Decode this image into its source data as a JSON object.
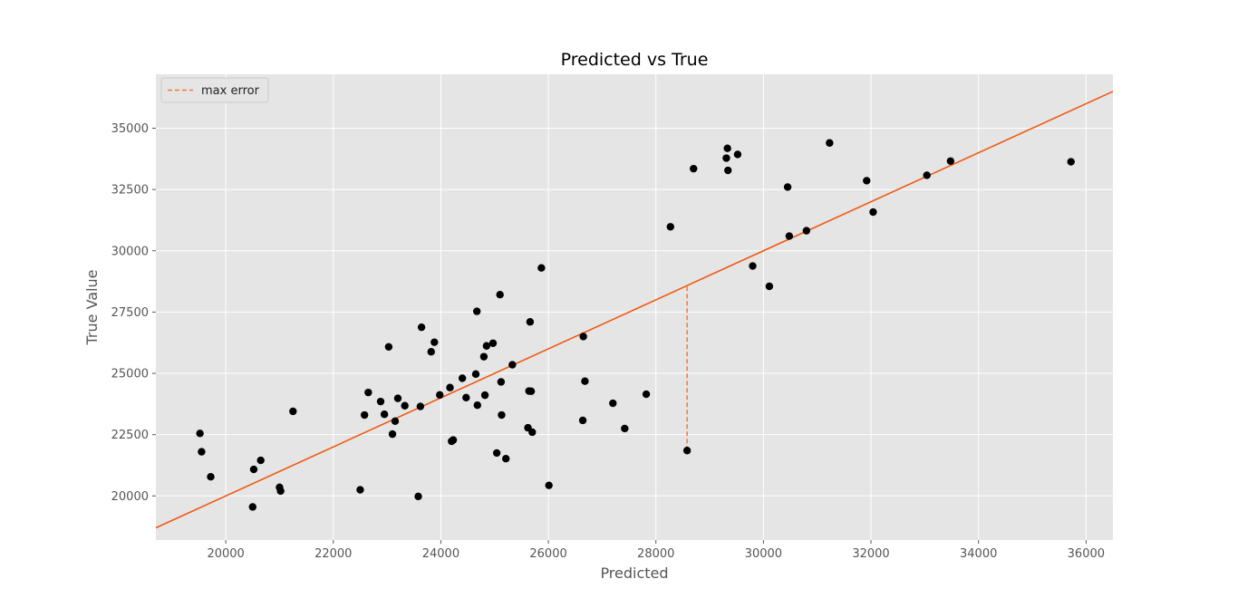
{
  "chart_data": {
    "type": "scatter",
    "title": "Predicted vs True",
    "xlabel": "Predicted",
    "ylabel": "True Value",
    "xlim": [
      18700,
      36500
    ],
    "ylim": [
      18200,
      37200
    ],
    "xticks": [
      20000,
      22000,
      24000,
      26000,
      28000,
      30000,
      32000,
      34000,
      36000
    ],
    "yticks": [
      20000,
      22500,
      25000,
      27500,
      30000,
      32500,
      35000
    ],
    "grid": true,
    "legend_position": "top-left",
    "legend": [
      {
        "name": "max error",
        "style": "dashed",
        "color": "#F5793A"
      }
    ],
    "reference_line": {
      "type": "identity",
      "color": "#F05A14"
    },
    "max_error": {
      "x": 28580,
      "y_from": 21850,
      "y_to": 28580
    },
    "marker_color": "#000000",
    "points": [
      {
        "x": 19520,
        "y": 22550
      },
      {
        "x": 19550,
        "y": 21800
      },
      {
        "x": 19720,
        "y": 20780
      },
      {
        "x": 20500,
        "y": 19550
      },
      {
        "x": 20520,
        "y": 21080
      },
      {
        "x": 20650,
        "y": 21450
      },
      {
        "x": 21000,
        "y": 20350
      },
      {
        "x": 21020,
        "y": 20200
      },
      {
        "x": 21250,
        "y": 23450
      },
      {
        "x": 22500,
        "y": 20250
      },
      {
        "x": 22580,
        "y": 23300
      },
      {
        "x": 22650,
        "y": 24220
      },
      {
        "x": 22880,
        "y": 23850
      },
      {
        "x": 22950,
        "y": 23330
      },
      {
        "x": 23030,
        "y": 26080
      },
      {
        "x": 23100,
        "y": 22520
      },
      {
        "x": 23150,
        "y": 23050
      },
      {
        "x": 23200,
        "y": 23980
      },
      {
        "x": 23330,
        "y": 23680
      },
      {
        "x": 23580,
        "y": 19980
      },
      {
        "x": 23620,
        "y": 23650
      },
      {
        "x": 23640,
        "y": 26880
      },
      {
        "x": 23820,
        "y": 25880
      },
      {
        "x": 23880,
        "y": 26270
      },
      {
        "x": 23980,
        "y": 24120
      },
      {
        "x": 24170,
        "y": 24420
      },
      {
        "x": 24200,
        "y": 22230
      },
      {
        "x": 24230,
        "y": 22280
      },
      {
        "x": 24400,
        "y": 24800
      },
      {
        "x": 24470,
        "y": 24010
      },
      {
        "x": 24650,
        "y": 24970
      },
      {
        "x": 24670,
        "y": 27530
      },
      {
        "x": 24680,
        "y": 23700
      },
      {
        "x": 24800,
        "y": 25680
      },
      {
        "x": 24820,
        "y": 24110
      },
      {
        "x": 24850,
        "y": 26120
      },
      {
        "x": 24970,
        "y": 26230
      },
      {
        "x": 25040,
        "y": 21750
      },
      {
        "x": 25100,
        "y": 28210
      },
      {
        "x": 25120,
        "y": 24650
      },
      {
        "x": 25130,
        "y": 23300
      },
      {
        "x": 25210,
        "y": 21520
      },
      {
        "x": 25330,
        "y": 25350
      },
      {
        "x": 25620,
        "y": 22780
      },
      {
        "x": 25640,
        "y": 24280
      },
      {
        "x": 25660,
        "y": 27100
      },
      {
        "x": 25680,
        "y": 24270
      },
      {
        "x": 25700,
        "y": 22600
      },
      {
        "x": 25870,
        "y": 29300
      },
      {
        "x": 26010,
        "y": 20430
      },
      {
        "x": 26640,
        "y": 23080
      },
      {
        "x": 26650,
        "y": 26500
      },
      {
        "x": 26680,
        "y": 24680
      },
      {
        "x": 27200,
        "y": 23780
      },
      {
        "x": 27420,
        "y": 22750
      },
      {
        "x": 27820,
        "y": 24150
      },
      {
        "x": 28270,
        "y": 30980
      },
      {
        "x": 28580,
        "y": 21850
      },
      {
        "x": 28700,
        "y": 33350
      },
      {
        "x": 29310,
        "y": 33780
      },
      {
        "x": 29330,
        "y": 34180
      },
      {
        "x": 29340,
        "y": 33280
      },
      {
        "x": 29520,
        "y": 33930
      },
      {
        "x": 29800,
        "y": 29380
      },
      {
        "x": 30110,
        "y": 28550
      },
      {
        "x": 30450,
        "y": 32600
      },
      {
        "x": 30480,
        "y": 30600
      },
      {
        "x": 30800,
        "y": 30820
      },
      {
        "x": 31230,
        "y": 34400
      },
      {
        "x": 31920,
        "y": 32860
      },
      {
        "x": 32040,
        "y": 31580
      },
      {
        "x": 33040,
        "y": 33080
      },
      {
        "x": 33480,
        "y": 33660
      },
      {
        "x": 35720,
        "y": 33630
      }
    ]
  }
}
